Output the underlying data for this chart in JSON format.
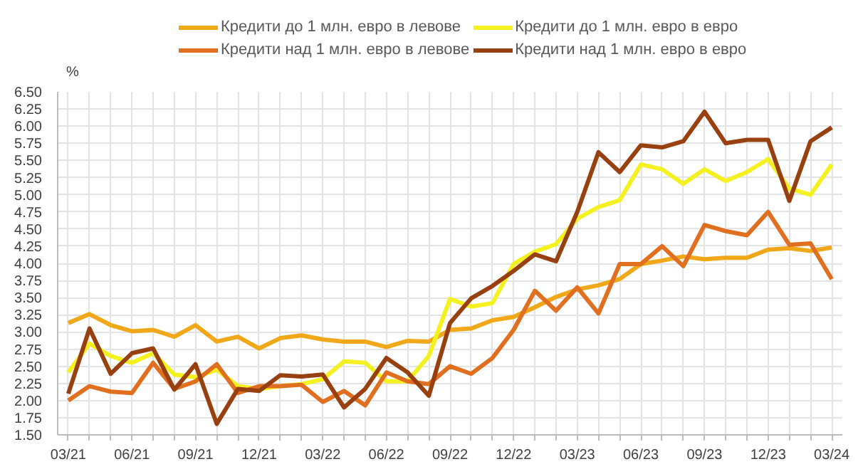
{
  "chart_data": {
    "type": "line",
    "ylabel": "%",
    "categories": [
      "03/21",
      null,
      null,
      "06/21",
      null,
      null,
      "09/21",
      null,
      null,
      "12/21",
      null,
      null,
      "03/22",
      null,
      null,
      "06/22",
      null,
      null,
      "09/22",
      null,
      null,
      "12/22",
      null,
      null,
      "03/23",
      null,
      null,
      "06/23",
      null,
      null,
      "09/23",
      null,
      null,
      "12/23",
      null,
      null,
      "03/24"
    ],
    "ylim": [
      1.5,
      6.5
    ],
    "yticks": [
      {
        "value": 1.5,
        "label": "1.50"
      },
      {
        "value": 1.75,
        "label": "1.75"
      },
      {
        "value": 2,
        "label": "2.00"
      },
      {
        "value": 2.25,
        "label": "2.25"
      },
      {
        "value": 2.5,
        "label": "2.50"
      },
      {
        "value": 2.75,
        "label": "2.75"
      },
      {
        "value": 3,
        "label": "3.00"
      },
      {
        "value": 3.25,
        "label": "3.25"
      },
      {
        "value": 3.5,
        "label": "3.50"
      },
      {
        "value": 3.75,
        "label": "3.75"
      },
      {
        "value": 4,
        "label": "4.00"
      },
      {
        "value": 4.25,
        "label": "4.25"
      },
      {
        "value": 4.5,
        "label": "4.50"
      },
      {
        "value": 4.75,
        "label": "4.75"
      },
      {
        "value": 5,
        "label": "5.00"
      },
      {
        "value": 5.25,
        "label": "5.25"
      },
      {
        "value": 5.5,
        "label": "5.50"
      },
      {
        "value": 5.75,
        "label": "5.75"
      },
      {
        "value": 6,
        "label": "6.00"
      },
      {
        "value": 6.25,
        "label": "6.25"
      },
      {
        "value": 6.5,
        "label": "6.50"
      }
    ],
    "grid": true,
    "legend": "top",
    "marker": "none",
    "line_style": "solid",
    "series": [
      {
        "name": "Кредити до 1 млн. евро в левове",
        "color": "#f0a818",
        "values": [
          3.13,
          3.26,
          3.1,
          3.01,
          3.03,
          2.93,
          3.1,
          2.86,
          2.93,
          2.76,
          2.91,
          2.95,
          2.89,
          2.86,
          2.86,
          2.78,
          2.87,
          2.86,
          3.03,
          3.05,
          3.17,
          3.22,
          3.36,
          3.51,
          3.62,
          3.68,
          3.77,
          3.99,
          4.04,
          4.1,
          4.06,
          4.08,
          4.08,
          4.2,
          4.22,
          4.18,
          4.23
        ]
      },
      {
        "name": "Кредити до 1 млн. евро в евро",
        "color": "#f5f020",
        "values": [
          2.41,
          2.83,
          2.65,
          2.55,
          2.69,
          2.38,
          2.34,
          2.45,
          2.21,
          2.17,
          2.21,
          2.24,
          2.31,
          2.57,
          2.55,
          2.28,
          2.28,
          2.65,
          3.48,
          3.37,
          3.42,
          3.99,
          4.17,
          4.28,
          4.65,
          4.82,
          4.92,
          5.44,
          5.37,
          5.16,
          5.37,
          5.2,
          5.33,
          5.52,
          5.09,
          5.0,
          5.44
        ]
      },
      {
        "name": "Кредити над 1 млн. евро в левове",
        "color": "#e07020",
        "values": [
          2.0,
          2.21,
          2.13,
          2.11,
          2.55,
          2.17,
          2.28,
          2.53,
          2.11,
          2.21,
          2.21,
          2.23,
          1.98,
          2.14,
          1.93,
          2.41,
          2.28,
          2.24,
          2.5,
          2.39,
          2.62,
          3.03,
          3.6,
          3.31,
          3.65,
          3.27,
          3.99,
          3.99,
          4.25,
          3.96,
          4.56,
          4.47,
          4.41,
          4.75,
          4.27,
          4.29,
          3.77
        ]
      },
      {
        "name": "Кредити над 1 млн. евро в евро",
        "color": "#984010",
        "values": [
          2.1,
          3.05,
          2.39,
          2.69,
          2.76,
          2.16,
          2.53,
          1.66,
          2.17,
          2.14,
          2.37,
          2.35,
          2.38,
          1.9,
          2.17,
          2.62,
          2.41,
          2.07,
          3.13,
          3.49,
          3.67,
          3.89,
          4.13,
          4.03,
          4.75,
          5.62,
          5.33,
          5.72,
          5.69,
          5.78,
          6.21,
          5.75,
          5.8,
          5.8,
          4.91,
          5.78,
          5.98
        ]
      }
    ]
  }
}
